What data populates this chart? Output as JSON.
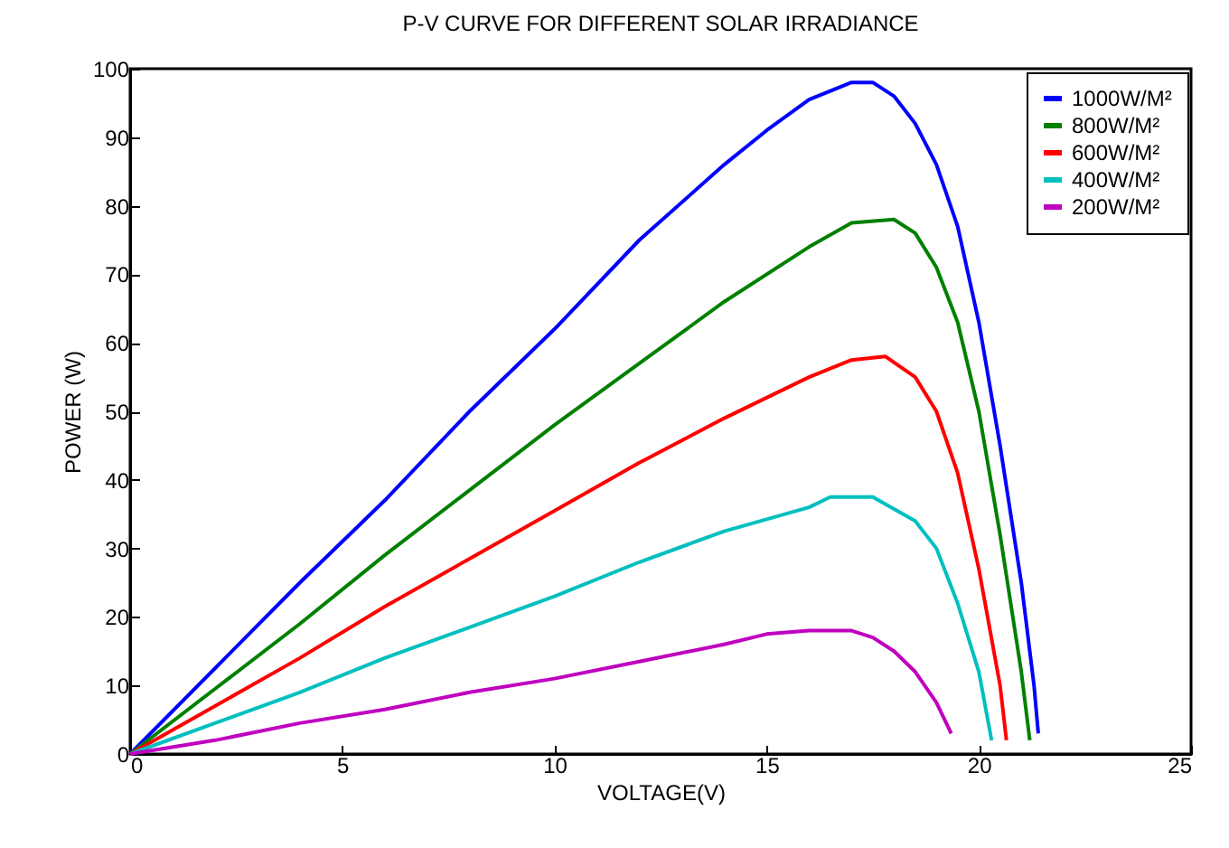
{
  "chart_data": {
    "type": "line",
    "title": "P-V CURVE FOR DIFFERENT SOLAR IRRADIANCE",
    "xlabel": "VOLTAGE(V)",
    "ylabel": "POWER (W)",
    "xlim": [
      0,
      25
    ],
    "xticks": [
      0,
      5,
      10,
      15,
      20,
      25
    ],
    "ylim": [
      0,
      100
    ],
    "yticks": [
      0,
      10,
      20,
      30,
      40,
      50,
      60,
      70,
      80,
      90,
      100
    ],
    "grid": false,
    "legend": "top right",
    "line_style": "solid",
    "marker": "none",
    "series": [
      {
        "name": "1000W/M²",
        "color": "#0000ff",
        "x": [
          0,
          2,
          4,
          6,
          8,
          10,
          12,
          14,
          15,
          16,
          17,
          17.5,
          18,
          18.5,
          19,
          19.5,
          20,
          20.5,
          21,
          21.3,
          21.4
        ],
        "values": [
          0,
          12.5,
          25,
          37,
          50,
          62,
          75,
          86,
          91,
          95.5,
          98,
          98,
          96,
          92,
          86,
          77,
          63,
          45,
          25,
          10,
          3
        ]
      },
      {
        "name": "800W/M²",
        "color": "#008000",
        "x": [
          0,
          2,
          4,
          6,
          8,
          10,
          12,
          14,
          16,
          17,
          18,
          18.5,
          19,
          19.5,
          20,
          20.5,
          21,
          21.2
        ],
        "values": [
          0,
          9.5,
          19,
          29,
          38.5,
          48,
          57,
          66,
          74,
          77.5,
          78,
          76,
          71,
          63,
          50,
          32,
          12,
          2
        ]
      },
      {
        "name": "600W/M²",
        "color": "#ff0000",
        "x": [
          0,
          2,
          4,
          6,
          8,
          10,
          12,
          14,
          16,
          17,
          17.8,
          18.5,
          19,
          19.5,
          20,
          20.5,
          20.65
        ],
        "values": [
          0,
          7,
          14,
          21.5,
          28.5,
          35.5,
          42.5,
          49,
          55,
          57.5,
          58,
          55,
          50,
          41,
          27,
          10,
          2
        ]
      },
      {
        "name": "400W/M²",
        "color": "#00bfbf",
        "x": [
          0,
          2,
          4,
          6,
          8,
          10,
          12,
          14,
          16,
          16.5,
          17.5,
          18.5,
          19,
          19.5,
          20,
          20.3
        ],
        "values": [
          0,
          4.5,
          9,
          14,
          18.5,
          23,
          28,
          32.5,
          36,
          37.5,
          37.5,
          34,
          30,
          22,
          12,
          2
        ]
      },
      {
        "name": "200W/M²",
        "color": "#bf00bf",
        "x": [
          0,
          2,
          4,
          6,
          8,
          10,
          12,
          14,
          15,
          16,
          17,
          17.5,
          18,
          18.5,
          19,
          19.35
        ],
        "values": [
          0,
          2,
          4.5,
          6.5,
          9,
          11,
          13.5,
          16,
          17.5,
          18,
          18,
          17,
          15,
          12,
          7.5,
          3
        ]
      }
    ]
  }
}
